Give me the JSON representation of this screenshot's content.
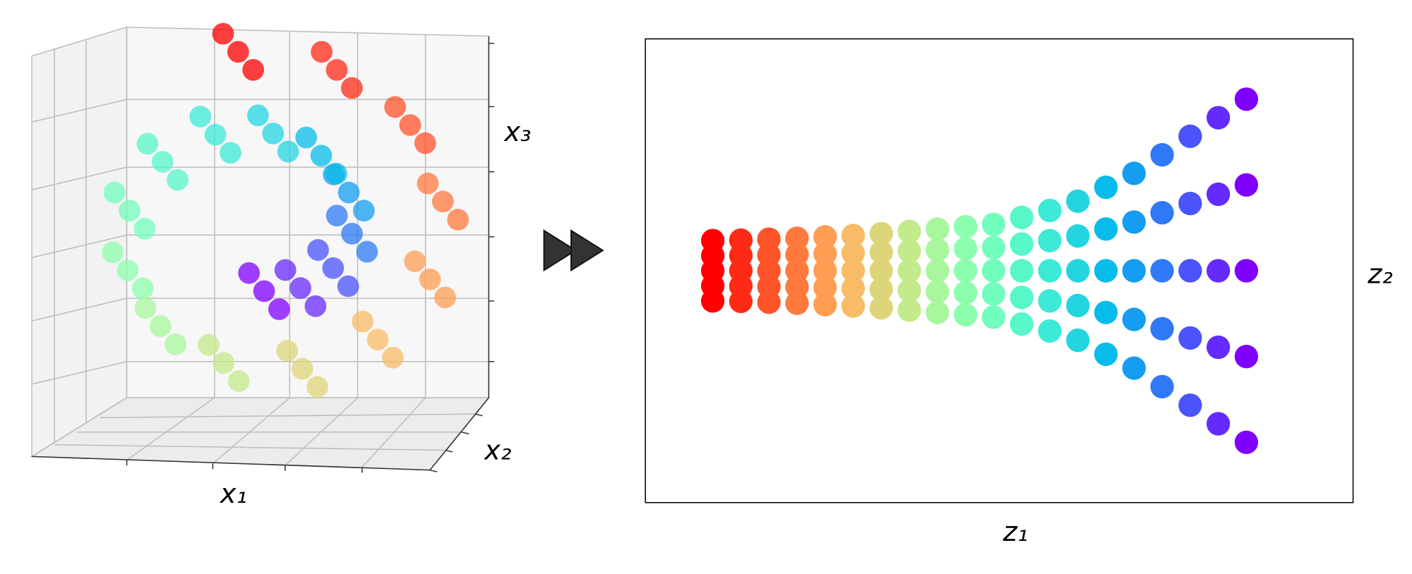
{
  "chart_data": [
    {
      "type": "scatter3d",
      "xlabel": "x₁",
      "ylabel": "x₂",
      "zlabel": "x₃",
      "colormap": "rainbow",
      "xlim": [
        -12,
        14
      ],
      "ylim": [
        0,
        21
      ],
      "zlim": [
        -12,
        15
      ],
      "x": [
        0.18,
        0.18,
        0.18,
        2.69,
        2.69,
        2.69,
        4.95,
        4.95,
        4.95,
        6.25,
        6.25,
        6.25,
        6.03,
        6.03,
        6.03,
        4.13,
        4.13,
        4.13,
        0.8,
        0.8,
        0.8,
        -3.18,
        -3.18,
        -3.18,
        -6.83,
        -6.83,
        -6.83,
        -9.11,
        -9.11,
        -9.11,
        -9.24,
        -9.24,
        -9.24,
        -6.97,
        -6.97,
        -6.97,
        -2.61,
        -2.61,
        -2.61,
        2.82,
        2.82,
        2.82,
        8.03,
        8.03,
        8.03,
        11.64,
        11.64,
        11.64,
        12.53,
        12.53,
        12.53,
        10.27,
        10.27,
        10.27,
        5.2,
        5.2,
        5.2,
        -1.61,
        -1.61,
        -1.61
      ],
      "y": [
        3,
        10,
        17,
        3,
        10,
        17,
        3,
        10,
        17,
        3,
        10,
        17,
        3,
        10,
        17,
        3,
        10,
        17,
        3,
        10,
        17,
        3,
        10,
        17,
        3,
        10,
        17,
        3,
        10,
        17,
        3,
        10,
        17,
        3,
        10,
        17,
        3,
        10,
        17,
        3,
        10,
        17,
        3,
        10,
        17,
        3,
        10,
        17,
        3,
        10,
        17,
        3,
        10,
        17,
        3,
        10,
        17,
        3,
        10,
        17
      ],
      "z": [
        -4.75,
        -4.75,
        -4.75,
        -4.51,
        -4.51,
        -4.51,
        -2.93,
        -2.93,
        -2.93,
        -0.21,
        -0.21,
        -0.21,
        3.04,
        3.04,
        3.04,
        5.96,
        5.96,
        5.96,
        7.71,
        7.71,
        7.71,
        7.61,
        7.61,
        7.61,
        5.47,
        5.47,
        5.47,
        1.61,
        1.61,
        1.61,
        -3.11,
        -3.11,
        -3.11,
        -7.52,
        -7.52,
        -7.52,
        -10.43,
        -10.43,
        -10.43,
        -10.89,
        -10.89,
        -10.89,
        -8.58,
        -8.58,
        -8.58,
        -3.82,
        -3.82,
        -3.82,
        2.33,
        2.33,
        2.33,
        8.37,
        8.37,
        8.37,
        12.73,
        12.73,
        12.73,
        14.16,
        14.16,
        14.16
      ],
      "c": [
        4.75,
        4.75,
        4.75,
        5.25,
        5.25,
        5.25,
        5.75,
        5.75,
        5.75,
        6.25,
        6.25,
        6.25,
        6.75,
        6.75,
        6.75,
        7.25,
        7.25,
        7.25,
        7.75,
        7.75,
        7.75,
        8.25,
        8.25,
        8.25,
        8.75,
        8.75,
        8.75,
        9.25,
        9.25,
        9.25,
        9.75,
        9.75,
        9.75,
        10.25,
        10.25,
        10.25,
        10.75,
        10.75,
        10.75,
        11.25,
        11.25,
        11.25,
        11.75,
        11.75,
        11.75,
        12.25,
        12.25,
        12.25,
        12.75,
        12.75,
        12.75,
        13.25,
        13.25,
        13.25,
        13.75,
        13.75,
        13.75,
        14.25,
        14.25,
        14.25
      ]
    },
    {
      "type": "scatter",
      "xlabel": "z₁",
      "ylabel": "z₂",
      "colormap": "rainbow",
      "xlim": [
        -12,
        114
      ],
      "ylim": [
        -40,
        50
      ],
      "x": [
        0,
        0,
        0,
        0,
        0,
        5,
        5,
        5,
        5,
        5,
        10,
        10,
        10,
        10,
        10,
        15,
        15,
        15,
        15,
        15,
        20,
        20,
        20,
        20,
        20,
        25,
        25,
        25,
        25,
        25,
        30,
        30,
        30,
        30,
        30,
        35,
        35,
        35,
        35,
        35,
        40,
        40,
        40,
        40,
        40,
        45,
        45,
        45,
        45,
        45,
        50,
        50,
        50,
        50,
        50,
        55,
        55,
        55,
        55,
        55,
        60,
        60,
        60,
        60,
        60,
        65,
        65,
        65,
        65,
        65,
        70,
        70,
        70,
        70,
        70,
        75,
        75,
        75,
        75,
        75,
        80,
        80,
        80,
        80,
        80,
        85,
        85,
        85,
        85,
        85,
        90,
        90,
        90,
        90,
        90,
        95,
        95,
        95,
        95,
        95
      ],
      "y": [
        -0.85,
        2.08,
        5,
        7.93,
        10.85,
        -0.94,
        2.03,
        5,
        7.97,
        10.94,
        -1.12,
        1.94,
        5,
        8.06,
        11.12,
        -1.3,
        1.85,
        5,
        8.15,
        11.3,
        -1.57,
        1.72,
        5,
        8.29,
        11.57,
        -1.84,
        1.58,
        5,
        8.42,
        11.84,
        -2.2,
        1.4,
        5,
        8.6,
        12.2,
        -2.65,
        1.18,
        5,
        8.83,
        12.65,
        -3.1,
        0.95,
        5,
        9.05,
        13.1,
        -3.55,
        0.73,
        5,
        9.28,
        13.55,
        -4,
        0.5,
        5,
        9.5,
        14,
        -5.35,
        -0.18,
        5,
        10.18,
        15.35,
        -6.7,
        -0.85,
        5,
        10.85,
        16.7,
        -8.5,
        -1.75,
        5,
        11.75,
        18.5,
        -11.2,
        -3.1,
        5,
        13.1,
        21.2,
        -13.9,
        -4.45,
        5,
        14.45,
        23.9,
        -17.5,
        -6.25,
        5,
        16.25,
        27.5,
        -21.1,
        -8.05,
        5,
        18.05,
        31.1,
        -24.7,
        -9.85,
        5,
        19.85,
        34.7,
        -28.3,
        -11.65,
        5,
        21.65,
        38.3
      ],
      "c": [
        14.25,
        14.25,
        14.25,
        14.25,
        14.25,
        13.75,
        13.75,
        13.75,
        13.75,
        13.75,
        13.25,
        13.25,
        13.25,
        13.25,
        13.25,
        12.75,
        12.75,
        12.75,
        12.75,
        12.75,
        12.25,
        12.25,
        12.25,
        12.25,
        12.25,
        11.75,
        11.75,
        11.75,
        11.75,
        11.75,
        11.25,
        11.25,
        11.25,
        11.25,
        11.25,
        10.75,
        10.75,
        10.75,
        10.75,
        10.75,
        10.25,
        10.25,
        10.25,
        10.25,
        10.25,
        9.75,
        9.75,
        9.75,
        9.75,
        9.75,
        9.25,
        9.25,
        9.25,
        9.25,
        9.25,
        8.75,
        8.75,
        8.75,
        8.75,
        8.75,
        8.25,
        8.25,
        8.25,
        8.25,
        8.25,
        7.75,
        7.75,
        7.75,
        7.75,
        7.75,
        7.25,
        7.25,
        7.25,
        7.25,
        7.25,
        6.75,
        6.75,
        6.75,
        6.75,
        6.75,
        6.25,
        6.25,
        6.25,
        6.25,
        6.25,
        5.75,
        5.75,
        5.75,
        5.75,
        5.75,
        5.25,
        5.25,
        5.25,
        5.25,
        5.25,
        4.75,
        4.75,
        4.75,
        4.75,
        4.75
      ]
    }
  ]
}
